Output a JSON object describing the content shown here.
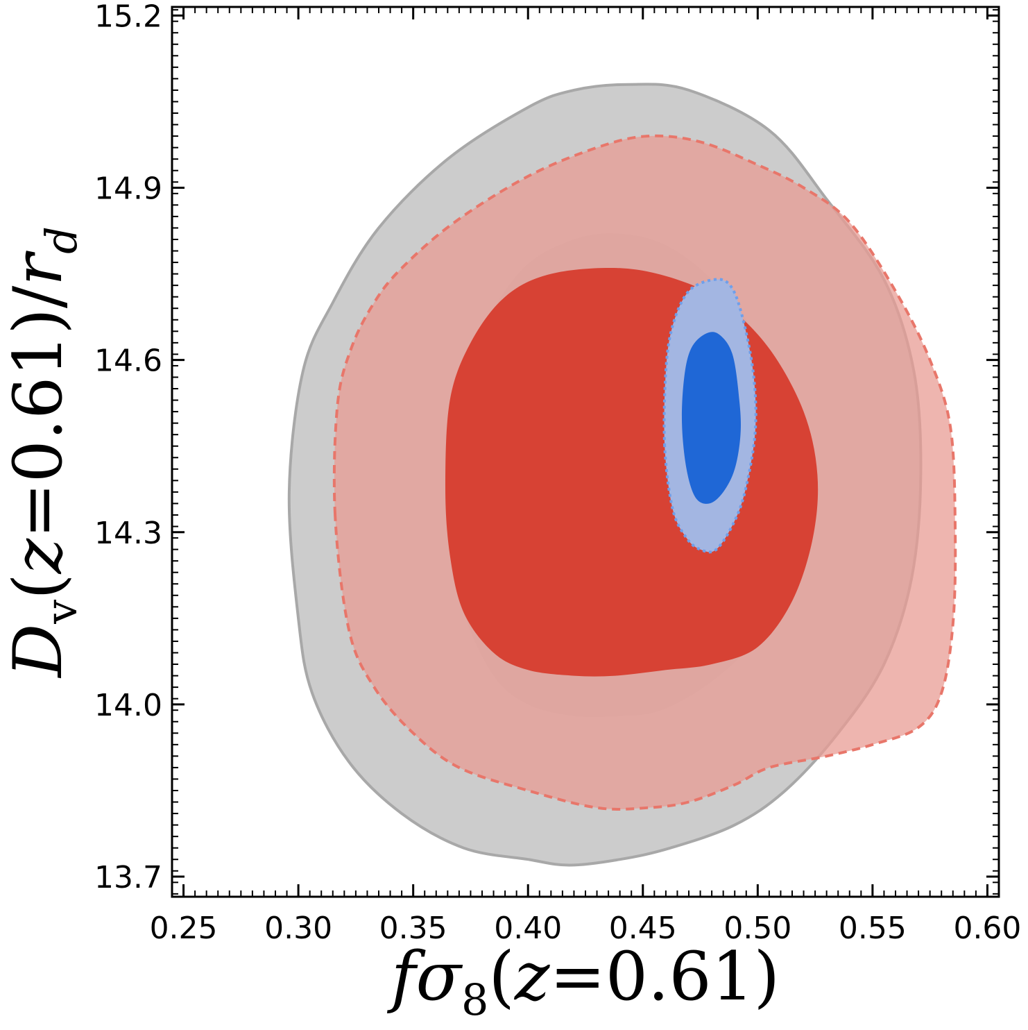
{
  "chart_data": {
    "type": "contour",
    "title": "",
    "xlabel": "fσ₈(z=0.61)",
    "ylabel": "Dᵥ(z=0.61)/r_d",
    "xlim": [
      0.245,
      0.605
    ],
    "ylim": [
      13.665,
      15.215
    ],
    "xticks": [
      0.25,
      0.3,
      0.35,
      0.4,
      0.45,
      0.5,
      0.55,
      0.6
    ],
    "xtick_labels": [
      "0.25",
      "0.30",
      "0.35",
      "0.40",
      "0.45",
      "0.50",
      "0.55",
      "0.60"
    ],
    "yticks": [
      13.7,
      14.0,
      14.3,
      14.6,
      14.9,
      15.2
    ],
    "ytick_labels": [
      "13.7",
      "14.0",
      "14.3",
      "14.6",
      "14.9",
      "15.2"
    ],
    "grid": false,
    "series": [
      {
        "color": "#b3b3b3",
        "line_style": "solid",
        "contours": [
          {
            "level": "2-sigma",
            "fill": "#cccccc",
            "fill_opacity": 1.0,
            "stroke": "#a8a8a8",
            "points": [
              [
                0.296,
                14.37
              ],
              [
                0.302,
                14.58
              ],
              [
                0.315,
                14.7
              ],
              [
                0.335,
                14.83
              ],
              [
                0.365,
                14.95
              ],
              [
                0.4,
                15.04
              ],
              [
                0.42,
                15.07
              ],
              [
                0.444,
                15.08
              ],
              [
                0.47,
                15.07
              ],
              [
                0.505,
                15.0
              ],
              [
                0.53,
                14.88
              ],
              [
                0.555,
                14.74
              ],
              [
                0.568,
                14.58
              ],
              [
                0.571,
                14.4
              ],
              [
                0.567,
                14.22
              ],
              [
                0.555,
                14.07
              ],
              [
                0.535,
                13.95
              ],
              [
                0.512,
                13.85
              ],
              [
                0.49,
                13.79
              ],
              [
                0.462,
                13.75
              ],
              [
                0.44,
                13.73
              ],
              [
                0.418,
                13.72
              ],
              [
                0.4,
                13.73
              ],
              [
                0.372,
                13.75
              ],
              [
                0.345,
                13.81
              ],
              [
                0.322,
                13.9
              ],
              [
                0.306,
                14.02
              ],
              [
                0.3,
                14.15
              ]
            ]
          },
          {
            "level": "1-sigma",
            "fill": "#b4b4b4",
            "fill_opacity": 0.45,
            "stroke": "none",
            "points": [
              [
                0.368,
                14.38
              ],
              [
                0.37,
                14.52
              ],
              [
                0.38,
                14.65
              ],
              [
                0.398,
                14.76
              ],
              [
                0.42,
                14.81
              ],
              [
                0.44,
                14.82
              ],
              [
                0.46,
                14.8
              ],
              [
                0.48,
                14.74
              ],
              [
                0.5,
                14.64
              ],
              [
                0.513,
                14.52
              ],
              [
                0.517,
                14.38
              ],
              [
                0.512,
                14.24
              ],
              [
                0.5,
                14.12
              ],
              [
                0.48,
                14.04
              ],
              [
                0.458,
                13.99
              ],
              [
                0.44,
                13.98
              ],
              [
                0.42,
                13.98
              ],
              [
                0.4,
                14.0
              ],
              [
                0.385,
                14.05
              ],
              [
                0.372,
                14.16
              ],
              [
                0.368,
                14.27
              ]
            ]
          }
        ]
      },
      {
        "color": "#e8766a",
        "line_style": "dashed",
        "contours": [
          {
            "level": "2-sigma",
            "fill": "#e89c94",
            "fill_opacity": 0.75,
            "stroke": "#e8766a",
            "points": [
              [
                0.316,
                14.33
              ],
              [
                0.317,
                14.52
              ],
              [
                0.323,
                14.62
              ],
              [
                0.333,
                14.7
              ],
              [
                0.345,
                14.76
              ],
              [
                0.368,
                14.84
              ],
              [
                0.4,
                14.92
              ],
              [
                0.43,
                14.97
              ],
              [
                0.452,
                14.99
              ],
              [
                0.475,
                14.98
              ],
              [
                0.5,
                14.94
              ],
              [
                0.52,
                14.9
              ],
              [
                0.54,
                14.84
              ],
              [
                0.56,
                14.72
              ],
              [
                0.575,
                14.6
              ],
              [
                0.584,
                14.48
              ],
              [
                0.586,
                14.3
              ],
              [
                0.585,
                14.14
              ],
              [
                0.58,
                14.02
              ],
              [
                0.57,
                13.96
              ],
              [
                0.55,
                13.93
              ],
              [
                0.53,
                13.91
              ],
              [
                0.505,
                13.89
              ],
              [
                0.49,
                13.86
              ],
              [
                0.47,
                13.83
              ],
              [
                0.452,
                13.82
              ],
              [
                0.43,
                13.82
              ],
              [
                0.4,
                13.85
              ],
              [
                0.37,
                13.89
              ],
              [
                0.35,
                13.95
              ],
              [
                0.333,
                14.03
              ],
              [
                0.322,
                14.13
              ]
            ]
          },
          {
            "level": "1-sigma",
            "fill": "#d63a2a",
            "fill_opacity": 0.92,
            "stroke": "none",
            "points": [
              [
                0.364,
                14.38
              ],
              [
                0.366,
                14.53
              ],
              [
                0.375,
                14.63
              ],
              [
                0.39,
                14.71
              ],
              [
                0.41,
                14.75
              ],
              [
                0.44,
                14.76
              ],
              [
                0.465,
                14.74
              ],
              [
                0.485,
                14.7
              ],
              [
                0.505,
                14.62
              ],
              [
                0.52,
                14.51
              ],
              [
                0.526,
                14.4
              ],
              [
                0.524,
                14.29
              ],
              [
                0.515,
                14.18
              ],
              [
                0.5,
                14.1
              ],
              [
                0.48,
                14.07
              ],
              [
                0.46,
                14.06
              ],
              [
                0.438,
                14.05
              ],
              [
                0.42,
                14.05
              ],
              [
                0.4,
                14.06
              ],
              [
                0.385,
                14.09
              ],
              [
                0.372,
                14.16
              ],
              [
                0.366,
                14.26
              ]
            ]
          }
        ]
      },
      {
        "color": "#6f9fea",
        "line_style": "dotted",
        "contours": [
          {
            "level": "2-sigma",
            "fill": "#a3b6e2",
            "fill_opacity": 1.0,
            "stroke": "#6f9fea",
            "points": [
              [
                0.4595,
                14.45
              ],
              [
                0.46,
                14.58
              ],
              [
                0.463,
                14.66
              ],
              [
                0.47,
                14.72
              ],
              [
                0.481,
                14.74
              ],
              [
                0.488,
                14.73
              ],
              [
                0.493,
                14.68
              ],
              [
                0.498,
                14.58
              ],
              [
                0.499,
                14.48
              ],
              [
                0.495,
                14.38
              ],
              [
                0.49,
                14.32
              ],
              [
                0.482,
                14.27
              ],
              [
                0.475,
                14.27
              ],
              [
                0.469,
                14.29
              ],
              [
                0.463,
                14.34
              ]
            ]
          },
          {
            "level": "1-sigma",
            "fill": "#1f67d6",
            "fill_opacity": 1.0,
            "stroke": "none",
            "points": [
              [
                0.467,
                14.49
              ],
              [
                0.468,
                14.57
              ],
              [
                0.471,
                14.62
              ],
              [
                0.477,
                14.645
              ],
              [
                0.483,
                14.645
              ],
              [
                0.489,
                14.61
              ],
              [
                0.492,
                14.53
              ],
              [
                0.4925,
                14.47
              ],
              [
                0.49,
                14.41
              ],
              [
                0.485,
                14.37
              ],
              [
                0.479,
                14.35
              ],
              [
                0.473,
                14.36
              ],
              [
                0.469,
                14.41
              ]
            ]
          }
        ]
      }
    ]
  }
}
